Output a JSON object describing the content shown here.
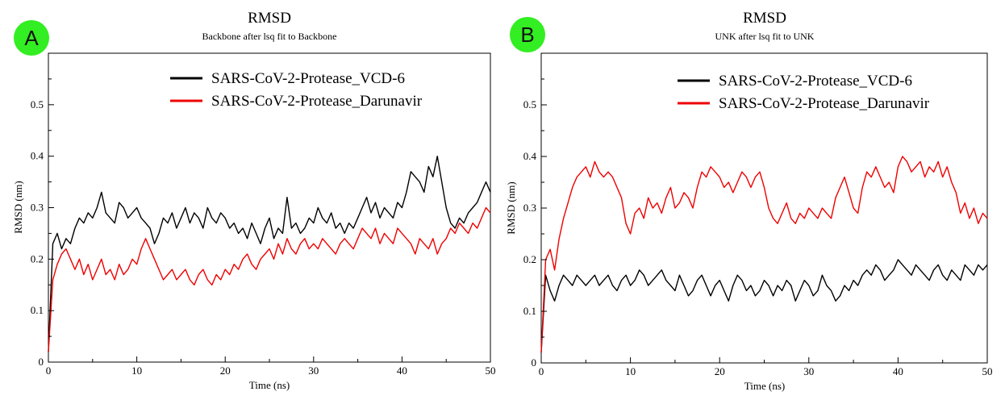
{
  "colors": {
    "vcd6": "#000000",
    "darunavir": "#ee0000",
    "badge": "#33ee22"
  },
  "chart_data": [
    {
      "type": "line",
      "badge": "A",
      "title": "RMSD",
      "subtitle": "Backbone after lsq fit to Backbone",
      "xlabel": "Time (ns)",
      "ylabel": "RMSD (nm)",
      "xlim": [
        0,
        50
      ],
      "ylim": [
        0,
        0.6
      ],
      "x_ticks": [
        "0",
        "10",
        "20",
        "30",
        "40",
        "50"
      ],
      "y_ticks": [
        "0",
        "0.1",
        "0.2",
        "0.3",
        "0.4",
        "0.5"
      ],
      "grid": false,
      "legend": "top-right",
      "series": [
        {
          "name": "SARS-CoV-2-Protease_VCD-6",
          "color": "#000000",
          "x": [
            0,
            0.5,
            1,
            1.5,
            2,
            2.5,
            3,
            3.5,
            4,
            4.5,
            5,
            5.5,
            6,
            6.5,
            7,
            7.5,
            8,
            8.5,
            9,
            9.5,
            10,
            10.5,
            11,
            11.5,
            12,
            12.5,
            13,
            13.5,
            14,
            14.5,
            15,
            15.5,
            16,
            16.5,
            17,
            17.5,
            18,
            18.5,
            19,
            19.5,
            20,
            20.5,
            21,
            21.5,
            22,
            22.5,
            23,
            23.5,
            24,
            24.5,
            25,
            25.5,
            26,
            26.5,
            27,
            27.5,
            28,
            28.5,
            29,
            29.5,
            30,
            30.5,
            31,
            31.5,
            32,
            32.5,
            33,
            33.5,
            34,
            34.5,
            35,
            35.5,
            36,
            36.5,
            37,
            37.5,
            38,
            38.5,
            39,
            39.5,
            40,
            40.5,
            41,
            41.5,
            42,
            42.5,
            43,
            43.5,
            44,
            44.5,
            45,
            45.5,
            46,
            46.5,
            47,
            47.5,
            48,
            48.5,
            49,
            49.5,
            50
          ],
          "y": [
            0.02,
            0.23,
            0.25,
            0.22,
            0.24,
            0.23,
            0.26,
            0.28,
            0.27,
            0.29,
            0.28,
            0.3,
            0.33,
            0.29,
            0.28,
            0.27,
            0.31,
            0.3,
            0.28,
            0.29,
            0.3,
            0.28,
            0.27,
            0.26,
            0.23,
            0.25,
            0.28,
            0.27,
            0.29,
            0.26,
            0.28,
            0.3,
            0.27,
            0.29,
            0.28,
            0.26,
            0.3,
            0.28,
            0.27,
            0.29,
            0.28,
            0.26,
            0.27,
            0.25,
            0.26,
            0.24,
            0.27,
            0.25,
            0.23,
            0.26,
            0.28,
            0.24,
            0.26,
            0.25,
            0.32,
            0.26,
            0.27,
            0.25,
            0.26,
            0.28,
            0.27,
            0.3,
            0.28,
            0.27,
            0.29,
            0.26,
            0.27,
            0.25,
            0.27,
            0.26,
            0.28,
            0.3,
            0.32,
            0.29,
            0.31,
            0.28,
            0.3,
            0.29,
            0.28,
            0.31,
            0.3,
            0.33,
            0.37,
            0.36,
            0.35,
            0.33,
            0.38,
            0.36,
            0.4,
            0.35,
            0.3,
            0.27,
            0.26,
            0.28,
            0.27,
            0.29,
            0.3,
            0.31,
            0.33,
            0.35,
            0.33
          ]
        },
        {
          "name": "SARS-CoV-2-Protease_Darunavir",
          "color": "#ee0000",
          "x": [
            0,
            0.5,
            1,
            1.5,
            2,
            2.5,
            3,
            3.5,
            4,
            4.5,
            5,
            5.5,
            6,
            6.5,
            7,
            7.5,
            8,
            8.5,
            9,
            9.5,
            10,
            10.5,
            11,
            11.5,
            12,
            12.5,
            13,
            13.5,
            14,
            14.5,
            15,
            15.5,
            16,
            16.5,
            17,
            17.5,
            18,
            18.5,
            19,
            19.5,
            20,
            20.5,
            21,
            21.5,
            22,
            22.5,
            23,
            23.5,
            24,
            24.5,
            25,
            25.5,
            26,
            26.5,
            27,
            27.5,
            28,
            28.5,
            29,
            29.5,
            30,
            30.5,
            31,
            31.5,
            32,
            32.5,
            33,
            33.5,
            34,
            34.5,
            35,
            35.5,
            36,
            36.5,
            37,
            37.5,
            38,
            38.5,
            39,
            39.5,
            40,
            40.5,
            41,
            41.5,
            42,
            42.5,
            43,
            43.5,
            44,
            44.5,
            45,
            45.5,
            46,
            46.5,
            47,
            47.5,
            48,
            48.5,
            49,
            49.5,
            50
          ],
          "y": [
            0.02,
            0.16,
            0.19,
            0.21,
            0.22,
            0.2,
            0.18,
            0.2,
            0.17,
            0.19,
            0.16,
            0.18,
            0.2,
            0.17,
            0.18,
            0.16,
            0.19,
            0.17,
            0.18,
            0.2,
            0.19,
            0.22,
            0.24,
            0.22,
            0.2,
            0.18,
            0.16,
            0.17,
            0.18,
            0.16,
            0.17,
            0.18,
            0.16,
            0.15,
            0.17,
            0.18,
            0.16,
            0.15,
            0.17,
            0.16,
            0.18,
            0.17,
            0.19,
            0.18,
            0.2,
            0.21,
            0.19,
            0.18,
            0.2,
            0.21,
            0.22,
            0.2,
            0.23,
            0.21,
            0.24,
            0.22,
            0.21,
            0.23,
            0.24,
            0.22,
            0.23,
            0.22,
            0.24,
            0.23,
            0.22,
            0.21,
            0.23,
            0.24,
            0.23,
            0.22,
            0.24,
            0.26,
            0.25,
            0.24,
            0.26,
            0.23,
            0.25,
            0.24,
            0.23,
            0.26,
            0.25,
            0.24,
            0.23,
            0.21,
            0.24,
            0.23,
            0.22,
            0.24,
            0.21,
            0.23,
            0.24,
            0.26,
            0.25,
            0.27,
            0.26,
            0.25,
            0.27,
            0.26,
            0.28,
            0.3,
            0.29
          ]
        }
      ]
    },
    {
      "type": "line",
      "badge": "B",
      "title": "RMSD",
      "subtitle": "UNK after lsq fit to UNK",
      "xlabel": "Time (ns)",
      "ylabel": "RMSD (nm)",
      "xlim": [
        0,
        50
      ],
      "ylim": [
        0,
        0.6
      ],
      "x_ticks": [
        "0",
        "10",
        "20",
        "30",
        "40",
        "50"
      ],
      "y_ticks": [
        "0",
        "0.1",
        "0.2",
        "0.3",
        "0.4",
        "0.5"
      ],
      "grid": false,
      "legend": "top-right",
      "series": [
        {
          "name": "SARS-CoV-2-Protease_VCD-6",
          "color": "#000000",
          "x": [
            0,
            0.5,
            1,
            1.5,
            2,
            2.5,
            3,
            3.5,
            4,
            4.5,
            5,
            5.5,
            6,
            6.5,
            7,
            7.5,
            8,
            8.5,
            9,
            9.5,
            10,
            10.5,
            11,
            11.5,
            12,
            12.5,
            13,
            13.5,
            14,
            14.5,
            15,
            15.5,
            16,
            16.5,
            17,
            17.5,
            18,
            18.5,
            19,
            19.5,
            20,
            20.5,
            21,
            21.5,
            22,
            22.5,
            23,
            23.5,
            24,
            24.5,
            25,
            25.5,
            26,
            26.5,
            27,
            27.5,
            28,
            28.5,
            29,
            29.5,
            30,
            30.5,
            31,
            31.5,
            32,
            32.5,
            33,
            33.5,
            34,
            34.5,
            35,
            35.5,
            36,
            36.5,
            37,
            37.5,
            38,
            38.5,
            39,
            39.5,
            40,
            40.5,
            41,
            41.5,
            42,
            42.5,
            43,
            43.5,
            44,
            44.5,
            45,
            45.5,
            46,
            46.5,
            47,
            47.5,
            48,
            48.5,
            49,
            49.5,
            50
          ],
          "y": [
            0.02,
            0.17,
            0.14,
            0.12,
            0.15,
            0.17,
            0.16,
            0.15,
            0.17,
            0.16,
            0.15,
            0.16,
            0.17,
            0.15,
            0.16,
            0.17,
            0.15,
            0.14,
            0.16,
            0.17,
            0.15,
            0.16,
            0.18,
            0.17,
            0.15,
            0.16,
            0.17,
            0.18,
            0.16,
            0.15,
            0.14,
            0.17,
            0.15,
            0.13,
            0.14,
            0.16,
            0.17,
            0.15,
            0.13,
            0.15,
            0.16,
            0.14,
            0.12,
            0.15,
            0.17,
            0.16,
            0.14,
            0.15,
            0.13,
            0.14,
            0.16,
            0.15,
            0.13,
            0.15,
            0.14,
            0.16,
            0.15,
            0.12,
            0.14,
            0.16,
            0.15,
            0.13,
            0.14,
            0.17,
            0.15,
            0.14,
            0.12,
            0.13,
            0.15,
            0.14,
            0.16,
            0.15,
            0.17,
            0.18,
            0.17,
            0.19,
            0.18,
            0.16,
            0.17,
            0.18,
            0.2,
            0.19,
            0.18,
            0.17,
            0.19,
            0.18,
            0.17,
            0.16,
            0.18,
            0.19,
            0.17,
            0.16,
            0.18,
            0.17,
            0.16,
            0.19,
            0.18,
            0.17,
            0.19,
            0.18,
            0.19
          ]
        },
        {
          "name": "SARS-CoV-2-Protease_Darunavir",
          "color": "#ee0000",
          "x": [
            0,
            0.5,
            1,
            1.5,
            2,
            2.5,
            3,
            3.5,
            4,
            4.5,
            5,
            5.5,
            6,
            6.5,
            7,
            7.5,
            8,
            8.5,
            9,
            9.5,
            10,
            10.5,
            11,
            11.5,
            12,
            12.5,
            13,
            13.5,
            14,
            14.5,
            15,
            15.5,
            16,
            16.5,
            17,
            17.5,
            18,
            18.5,
            19,
            19.5,
            20,
            20.5,
            21,
            21.5,
            22,
            22.5,
            23,
            23.5,
            24,
            24.5,
            25,
            25.5,
            26,
            26.5,
            27,
            27.5,
            28,
            28.5,
            29,
            29.5,
            30,
            30.5,
            31,
            31.5,
            32,
            32.5,
            33,
            33.5,
            34,
            34.5,
            35,
            35.5,
            36,
            36.5,
            37,
            37.5,
            38,
            38.5,
            39,
            39.5,
            40,
            40.5,
            41,
            41.5,
            42,
            42.5,
            43,
            43.5,
            44,
            44.5,
            45,
            45.5,
            46,
            46.5,
            47,
            47.5,
            48,
            48.5,
            49,
            49.5,
            50
          ],
          "y": [
            0.02,
            0.2,
            0.22,
            0.18,
            0.24,
            0.28,
            0.31,
            0.34,
            0.36,
            0.37,
            0.38,
            0.36,
            0.39,
            0.37,
            0.36,
            0.37,
            0.36,
            0.34,
            0.32,
            0.27,
            0.25,
            0.29,
            0.3,
            0.28,
            0.32,
            0.3,
            0.31,
            0.29,
            0.32,
            0.34,
            0.3,
            0.31,
            0.33,
            0.32,
            0.3,
            0.34,
            0.37,
            0.36,
            0.38,
            0.37,
            0.36,
            0.34,
            0.35,
            0.33,
            0.35,
            0.37,
            0.36,
            0.34,
            0.36,
            0.37,
            0.34,
            0.3,
            0.28,
            0.27,
            0.29,
            0.31,
            0.28,
            0.27,
            0.29,
            0.28,
            0.3,
            0.29,
            0.28,
            0.3,
            0.29,
            0.28,
            0.32,
            0.34,
            0.36,
            0.33,
            0.3,
            0.29,
            0.34,
            0.37,
            0.36,
            0.38,
            0.36,
            0.34,
            0.35,
            0.33,
            0.38,
            0.4,
            0.39,
            0.37,
            0.38,
            0.39,
            0.36,
            0.38,
            0.37,
            0.39,
            0.36,
            0.38,
            0.35,
            0.33,
            0.29,
            0.31,
            0.28,
            0.3,
            0.27,
            0.29,
            0.28
          ]
        }
      ]
    }
  ]
}
